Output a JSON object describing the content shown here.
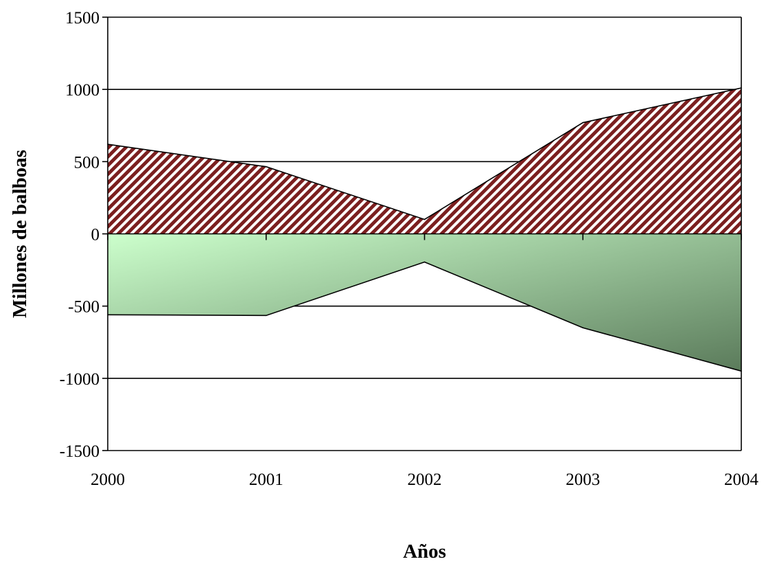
{
  "chart_data": {
    "type": "area",
    "title": "",
    "xlabel": "Años",
    "ylabel": "Millones de balboas",
    "categories": [
      "2000",
      "2001",
      "2002",
      "2003",
      "2004"
    ],
    "ylim": [
      -1500,
      1500
    ],
    "yticks": [
      1500,
      1000,
      500,
      0,
      -500,
      -1000,
      -1500
    ],
    "grid": true,
    "legend": "none",
    "series": [
      {
        "values": [
          620,
          465,
          100,
          770,
          1010
        ],
        "fill": "hatched",
        "colors": [
          "#7b1f1f",
          "#ffffff"
        ]
      },
      {
        "values": [
          -560,
          -565,
          -195,
          -650,
          -950
        ],
        "fill": "gradient",
        "colors": [
          "#ccffcc",
          "#5b7b5b"
        ]
      }
    ]
  }
}
